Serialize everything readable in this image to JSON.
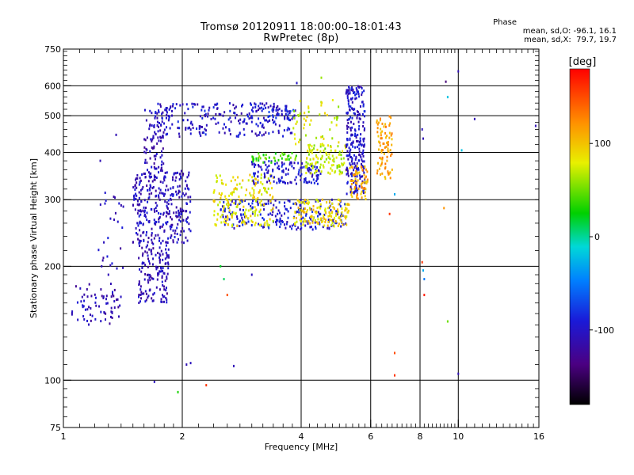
{
  "header": {
    "title": "Tromsø 20120911 18:00:00–18:01:43",
    "subtitle": "RwPretec (8p)"
  },
  "phase_stats": {
    "heading": "Phase",
    "line_o": "mean, sd,O: -96.1, 16.1",
    "line_x": "mean, sd,X:  79.7, 19.7"
  },
  "colorbar": {
    "unit_label": "[deg]",
    "ticks": [
      "100",
      "0",
      "-100"
    ],
    "tick_values": [
      100,
      0,
      -100
    ],
    "range": [
      -180,
      180
    ]
  },
  "chart_data": {
    "type": "scatter",
    "xlabel": "Frequency [MHz]",
    "ylabel": "Stationary phase Virtual Height [km]",
    "x_scale": "log",
    "y_scale": "log",
    "xlim": [
      1,
      16
    ],
    "ylim": [
      75,
      750
    ],
    "x_ticks": [
      1,
      2,
      4,
      6,
      8,
      10,
      16
    ],
    "x_tick_labels": [
      "1",
      "2",
      "4",
      "6",
      "8",
      "10",
      "16"
    ],
    "y_ticks": [
      75,
      100,
      200,
      300,
      400,
      500,
      600,
      750
    ],
    "y_tick_labels": [
      "75",
      "100",
      "200",
      "300",
      "400",
      "500",
      "600",
      "750"
    ],
    "grid": true,
    "grid_x": [
      2,
      4,
      6,
      8,
      10
    ],
    "grid_y": [
      100,
      200,
      300,
      400,
      500,
      600
    ],
    "point_clusters": [
      {
        "x": [
          1.05,
          1.4
        ],
        "y": [
          140,
          180
        ],
        "phase": -110,
        "n": 70
      },
      {
        "x": [
          1.22,
          1.42
        ],
        "y": [
          195,
          320
        ],
        "phase": -105,
        "n": 25
      },
      {
        "x": [
          1.55,
          1.85
        ],
        "y": [
          160,
          230
        ],
        "phase": -110,
        "n": 140
      },
      {
        "x": [
          1.5,
          2.1
        ],
        "y": [
          230,
          360
        ],
        "phase": -105,
        "n": 320
      },
      {
        "x": [
          1.6,
          1.8
        ],
        "y": [
          360,
          520
        ],
        "phase": -108,
        "n": 80
      },
      {
        "x": [
          1.7,
          3.8
        ],
        "y": [
          440,
          540
        ],
        "phase": -100,
        "n": 240
      },
      {
        "x": [
          3.3,
          3.9
        ],
        "y": [
          490,
          520
        ],
        "phase": -90,
        "n": 30
      },
      {
        "x": [
          2.5,
          5.2
        ],
        "y": [
          250,
          300
        ],
        "phase": -95,
        "n": 220
      },
      {
        "x": [
          3.8,
          5.3
        ],
        "y": [
          255,
          300
        ],
        "phase": 90,
        "n": 140
      },
      {
        "x": [
          2.4,
          3.4
        ],
        "y": [
          255,
          350
        ],
        "phase": 85,
        "n": 180
      },
      {
        "x": [
          3.0,
          4.5
        ],
        "y": [
          330,
          380
        ],
        "phase": -98,
        "n": 130
      },
      {
        "x": [
          4.1,
          5.2
        ],
        "y": [
          350,
          420
        ],
        "phase": 70,
        "n": 110
      },
      {
        "x": [
          3.0,
          3.9
        ],
        "y": [
          375,
          400
        ],
        "phase": 40,
        "n": 40
      },
      {
        "x": [
          3.8,
          5.0
        ],
        "y": [
          410,
          560
        ],
        "phase": 75,
        "n": 50
      },
      {
        "x": [
          5.2,
          5.8
        ],
        "y": [
          310,
          600
        ],
        "phase": -100,
        "n": 260
      },
      {
        "x": [
          5.3,
          5.9
        ],
        "y": [
          300,
          370
        ],
        "phase": 110,
        "n": 60
      },
      {
        "x": [
          6.2,
          6.8
        ],
        "y": [
          340,
          500
        ],
        "phase": 115,
        "n": 80
      }
    ],
    "points": [
      {
        "x": 1.24,
        "y": 380,
        "phase": -110
      },
      {
        "x": 1.36,
        "y": 445,
        "phase": -110
      },
      {
        "x": 2.5,
        "y": 200,
        "phase": 20
      },
      {
        "x": 2.55,
        "y": 185,
        "phase": 10
      },
      {
        "x": 3.0,
        "y": 190,
        "phase": -105
      },
      {
        "x": 2.3,
        "y": 97,
        "phase": 160
      },
      {
        "x": 1.7,
        "y": 99,
        "phase": -105
      },
      {
        "x": 1.95,
        "y": 93,
        "phase": 30
      },
      {
        "x": 2.05,
        "y": 110,
        "phase": -110
      },
      {
        "x": 2.1,
        "y": 111,
        "phase": -105
      },
      {
        "x": 2.7,
        "y": 109,
        "phase": -108
      },
      {
        "x": 2.6,
        "y": 168,
        "phase": 150
      },
      {
        "x": 3.9,
        "y": 610,
        "phase": -100
      },
      {
        "x": 4.5,
        "y": 630,
        "phase": 60
      },
      {
        "x": 6.9,
        "y": 118,
        "phase": 150
      },
      {
        "x": 6.9,
        "y": 103,
        "phase": 160
      },
      {
        "x": 6.7,
        "y": 275,
        "phase": 160
      },
      {
        "x": 8.1,
        "y": 205,
        "phase": 160
      },
      {
        "x": 8.15,
        "y": 195,
        "phase": -30
      },
      {
        "x": 8.2,
        "y": 185,
        "phase": -50
      },
      {
        "x": 8.2,
        "y": 168,
        "phase": 170
      },
      {
        "x": 8.1,
        "y": 460,
        "phase": -105
      },
      {
        "x": 8.15,
        "y": 435,
        "phase": -110
      },
      {
        "x": 9.3,
        "y": 615,
        "phase": -140
      },
      {
        "x": 9.2,
        "y": 285,
        "phase": 120
      },
      {
        "x": 9.4,
        "y": 143,
        "phase": 50
      },
      {
        "x": 9.4,
        "y": 560,
        "phase": -20
      },
      {
        "x": 10.0,
        "y": 655,
        "phase": -110
      },
      {
        "x": 10.2,
        "y": 405,
        "phase": -20
      },
      {
        "x": 10.0,
        "y": 104,
        "phase": -110
      },
      {
        "x": 11.0,
        "y": 490,
        "phase": -110
      },
      {
        "x": 15.7,
        "y": 470,
        "phase": -110
      },
      {
        "x": 6.6,
        "y": 380,
        "phase": 110
      },
      {
        "x": 6.8,
        "y": 360,
        "phase": 105
      },
      {
        "x": 6.9,
        "y": 310,
        "phase": -30
      },
      {
        "x": 1.25,
        "y": 200,
        "phase": -110
      },
      {
        "x": 1.3,
        "y": 190,
        "phase": -108
      }
    ]
  }
}
